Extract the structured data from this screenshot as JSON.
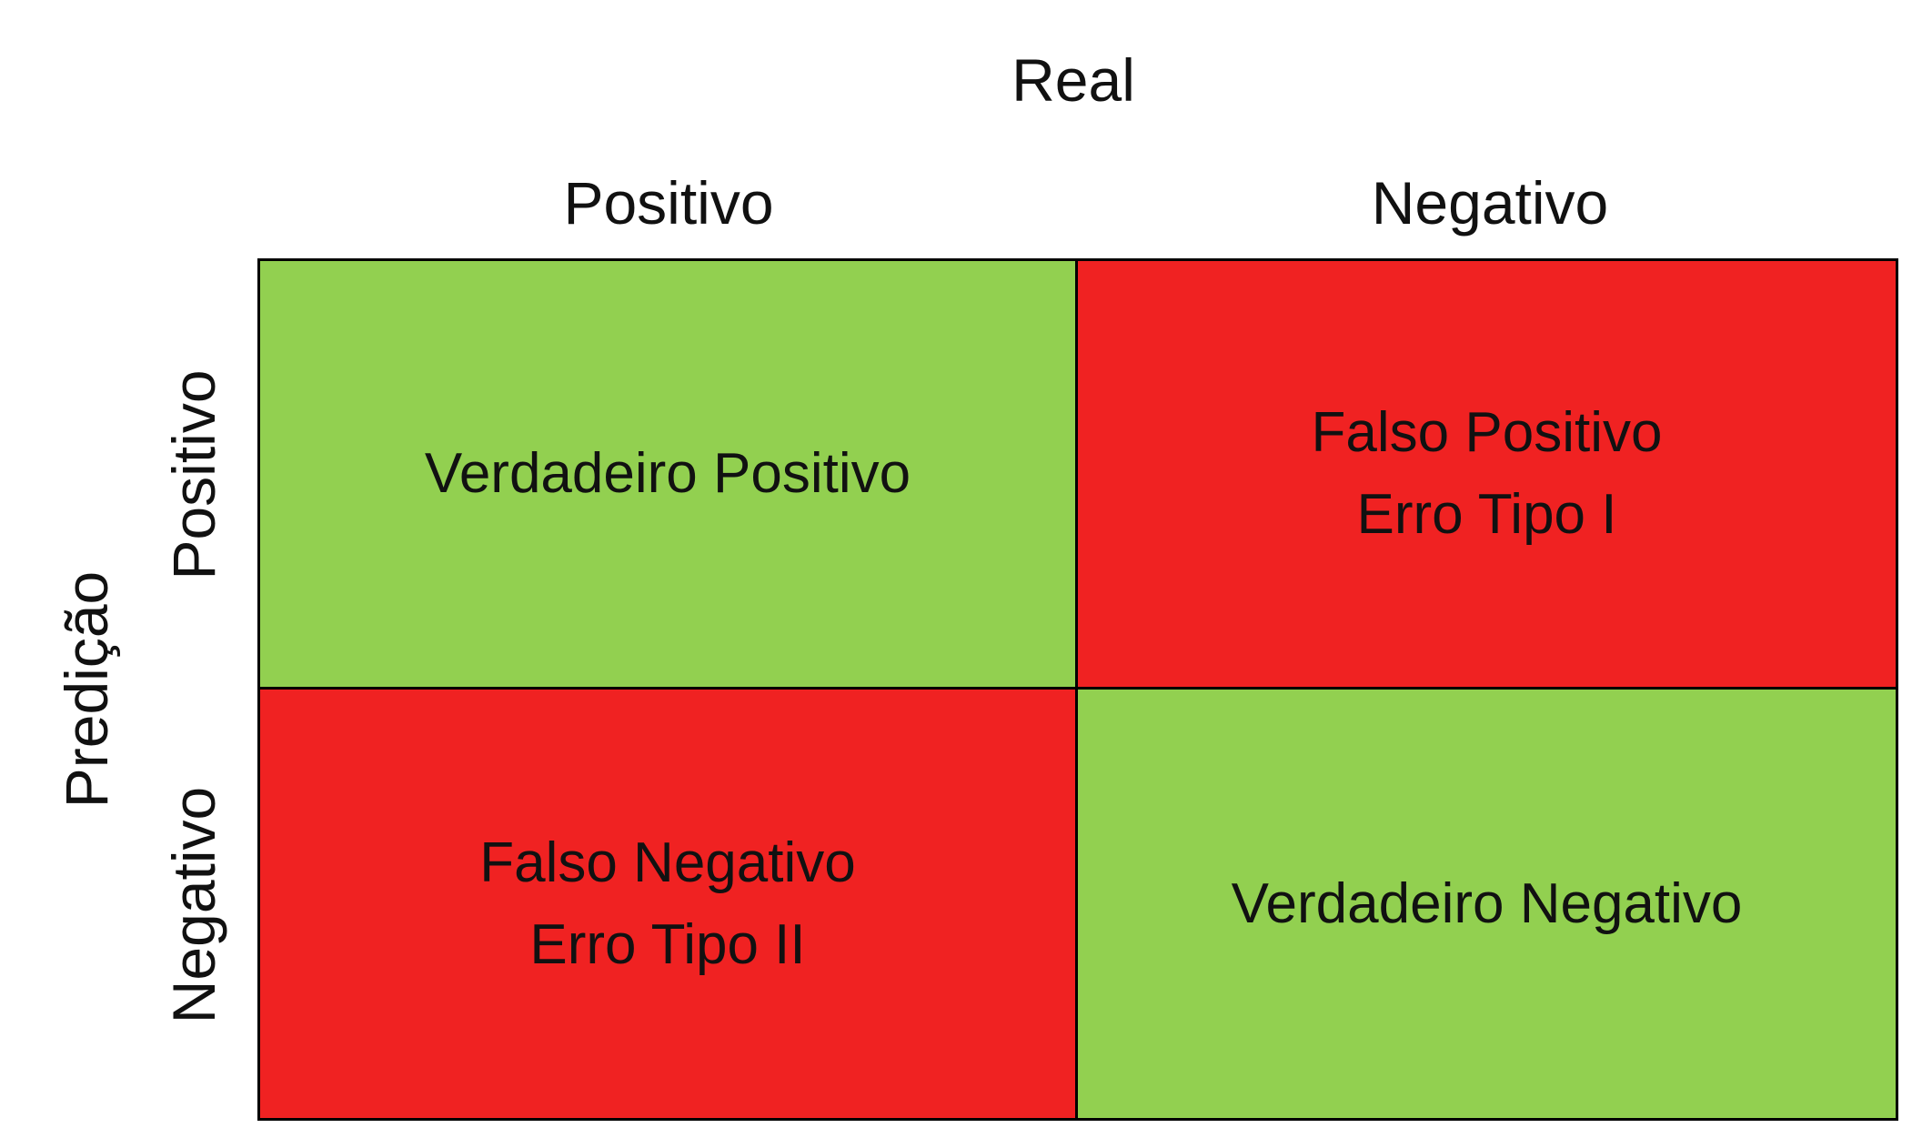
{
  "header": {
    "title": "Real",
    "columns": [
      "Positivo",
      "Negativo"
    ]
  },
  "side": {
    "title": "Predição",
    "rows": [
      "Positivo",
      "Negativo"
    ]
  },
  "colors": {
    "correct": "#92d050",
    "error": "#f02222"
  },
  "cells": [
    {
      "line1": "Verdadeiro Positivo",
      "line2": "",
      "kind": "correct"
    },
    {
      "line1": "Falso Positivo",
      "line2": "Erro Tipo I",
      "kind": "error"
    },
    {
      "line1": "Falso Negativo",
      "line2": "Erro Tipo II",
      "kind": "error"
    },
    {
      "line1": "Verdadeiro Negativo",
      "line2": "",
      "kind": "correct"
    }
  ]
}
